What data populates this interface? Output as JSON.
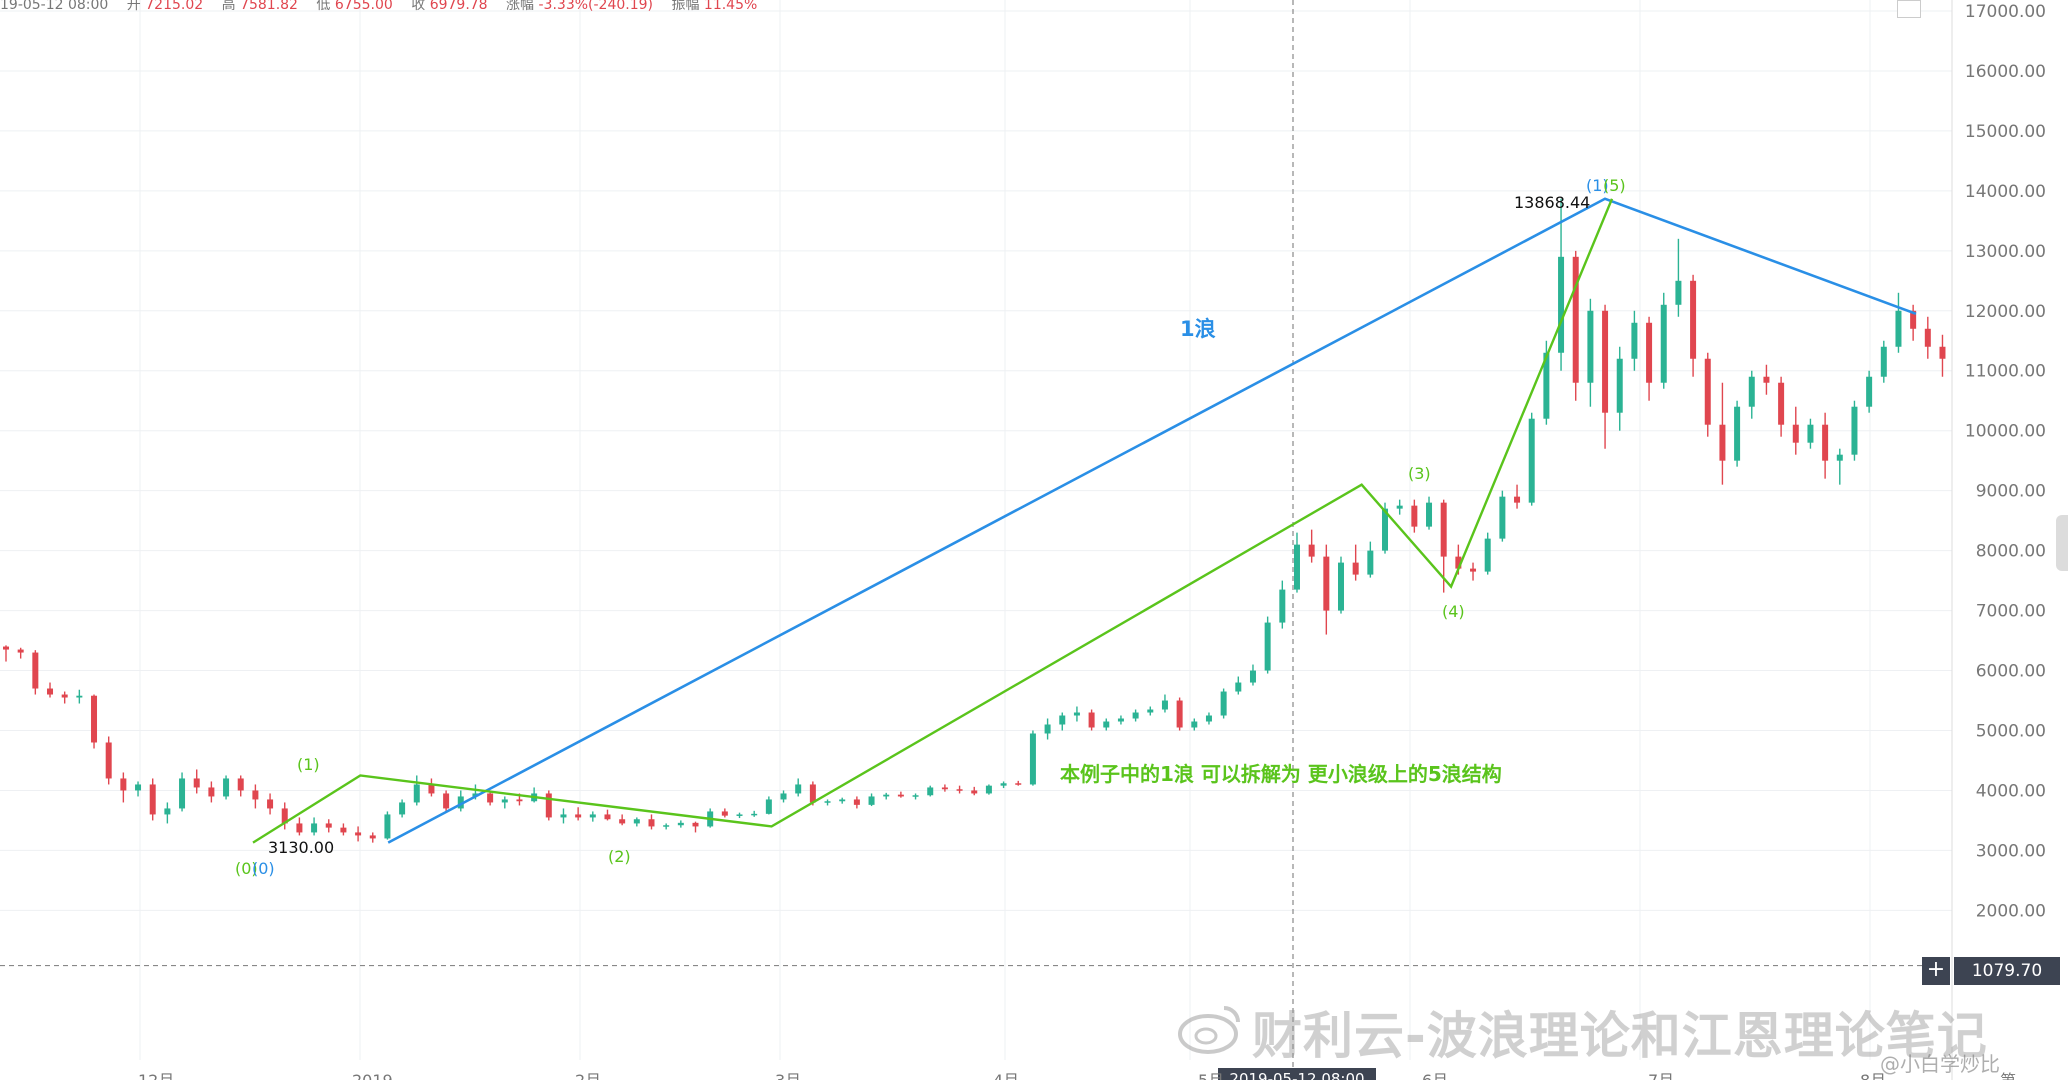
{
  "header": {
    "date_label": "19-05-12 08:00",
    "open_label": "开",
    "open": "7215.02",
    "high_label": "高",
    "high": "7581.82",
    "low_label": "低",
    "low": "6755.00",
    "close_label": "收",
    "close": "6979.78",
    "change_label": "涨幅",
    "change": "-3.33%(-240.19)",
    "amp_label": "振幅",
    "amp": "11.45%"
  },
  "price_tag": "1079.70",
  "crosshair_date": "2019-05-12 08:00",
  "watermark": "财利云-波浪理论和江恩理论笔记",
  "watermark_handle": "@小白学炒比",
  "colors": {
    "up": "#2bb394",
    "down": "#e0464f",
    "big_wave": "#2a8fe6",
    "small_wave": "#5ac41c",
    "grid": "#eef0f3",
    "axis_text": "#777777"
  },
  "chart_data": {
    "type": "candlestick",
    "y_axis": {
      "ticks": [
        "17000.00",
        "16000.00",
        "15000.00",
        "14000.00",
        "13000.00",
        "12000.00",
        "11000.00",
        "10000.00",
        "9000.00",
        "8000.00",
        "7000.00",
        "6000.00",
        "5000.00",
        "4000.00",
        "3000.00",
        "2000.00"
      ],
      "min": 1000,
      "max": 17500,
      "scale": "linear",
      "side": "right"
    },
    "x_axis": {
      "ticks": [
        "12月",
        "2019",
        "2月",
        "3月",
        "4月",
        "5月",
        "6月",
        "7月",
        "8月",
        "第"
      ]
    },
    "candles": [
      [
        6400,
        6420,
        6150,
        6350
      ],
      [
        6350,
        6380,
        6200,
        6300
      ],
      [
        6300,
        6340,
        5600,
        5700
      ],
      [
        5700,
        5800,
        5550,
        5600
      ],
      [
        5600,
        5650,
        5450,
        5550
      ],
      [
        5550,
        5680,
        5450,
        5580
      ],
      [
        5580,
        5600,
        4700,
        4800
      ],
      [
        4800,
        4900,
        4100,
        4200
      ],
      [
        4200,
        4300,
        3800,
        4000
      ],
      [
        4000,
        4150,
        3900,
        4100
      ],
      [
        4100,
        4200,
        3500,
        3600
      ],
      [
        3600,
        3800,
        3450,
        3700
      ],
      [
        3700,
        4300,
        3650,
        4200
      ],
      [
        4200,
        4350,
        3950,
        4050
      ],
      [
        4050,
        4150,
        3800,
        3900
      ],
      [
        3900,
        4250,
        3850,
        4200
      ],
      [
        4200,
        4250,
        3900,
        4000
      ],
      [
        4000,
        4100,
        3700,
        3850
      ],
      [
        3850,
        3950,
        3600,
        3700
      ],
      [
        3700,
        3800,
        3350,
        3450
      ],
      [
        3450,
        3550,
        3250,
        3300
      ],
      [
        3300,
        3550,
        3250,
        3450
      ],
      [
        3450,
        3520,
        3300,
        3380
      ],
      [
        3380,
        3450,
        3250,
        3300
      ],
      [
        3300,
        3400,
        3150,
        3250
      ],
      [
        3250,
        3300,
        3130,
        3200
      ],
      [
        3200,
        3650,
        3180,
        3600
      ],
      [
        3600,
        3850,
        3550,
        3800
      ],
      [
        3800,
        4250,
        3750,
        4100
      ],
      [
        4100,
        4200,
        3900,
        3950
      ],
      [
        3950,
        4000,
        3650,
        3700
      ],
      [
        3700,
        4000,
        3650,
        3900
      ],
      [
        3900,
        4100,
        3850,
        3950
      ],
      [
        3950,
        4000,
        3750,
        3800
      ],
      [
        3800,
        3900,
        3700,
        3850
      ],
      [
        3850,
        3950,
        3750,
        3820
      ],
      [
        3820,
        4050,
        3800,
        3950
      ],
      [
        3950,
        4000,
        3500,
        3550
      ],
      [
        3550,
        3700,
        3450,
        3600
      ],
      [
        3600,
        3720,
        3500,
        3550
      ],
      [
        3550,
        3650,
        3480,
        3600
      ],
      [
        3600,
        3680,
        3500,
        3520
      ],
      [
        3520,
        3600,
        3420,
        3450
      ],
      [
        3450,
        3550,
        3400,
        3520
      ],
      [
        3520,
        3600,
        3350,
        3400
      ],
      [
        3400,
        3450,
        3350,
        3420
      ],
      [
        3420,
        3500,
        3380,
        3460
      ],
      [
        3460,
        3480,
        3300,
        3400
      ],
      [
        3400,
        3700,
        3380,
        3650
      ],
      [
        3650,
        3700,
        3550,
        3580
      ],
      [
        3580,
        3630,
        3540,
        3600
      ],
      [
        3600,
        3660,
        3560,
        3610
      ],
      [
        3610,
        3900,
        3600,
        3850
      ],
      [
        3850,
        4000,
        3800,
        3950
      ],
      [
        3950,
        4200,
        3900,
        4100
      ],
      [
        4100,
        4150,
        3750,
        3800
      ],
      [
        3800,
        3850,
        3750,
        3820
      ],
      [
        3820,
        3880,
        3780,
        3850
      ],
      [
        3850,
        3900,
        3700,
        3760
      ],
      [
        3760,
        3950,
        3740,
        3900
      ],
      [
        3900,
        3960,
        3850,
        3930
      ],
      [
        3930,
        3980,
        3880,
        3900
      ],
      [
        3900,
        3950,
        3850,
        3920
      ],
      [
        3920,
        4080,
        3900,
        4050
      ],
      [
        4050,
        4100,
        3980,
        4020
      ],
      [
        4020,
        4080,
        3950,
        4000
      ],
      [
        4000,
        4060,
        3920,
        3950
      ],
      [
        3950,
        4100,
        3930,
        4080
      ],
      [
        4080,
        4150,
        4040,
        4120
      ],
      [
        4120,
        4160,
        4080,
        4100
      ],
      [
        4100,
        5000,
        4080,
        4950
      ],
      [
        4950,
        5200,
        4850,
        5100
      ],
      [
        5100,
        5300,
        5000,
        5250
      ],
      [
        5250,
        5400,
        5150,
        5300
      ],
      [
        5300,
        5350,
        5000,
        5050
      ],
      [
        5050,
        5200,
        5000,
        5150
      ],
      [
        5150,
        5250,
        5100,
        5200
      ],
      [
        5200,
        5350,
        5150,
        5300
      ],
      [
        5300,
        5400,
        5250,
        5350
      ],
      [
        5350,
        5600,
        5300,
        5500
      ],
      [
        5500,
        5550,
        5000,
        5050
      ],
      [
        5050,
        5200,
        5000,
        5150
      ],
      [
        5150,
        5300,
        5100,
        5250
      ],
      [
        5250,
        5700,
        5200,
        5650
      ],
      [
        5650,
        5900,
        5600,
        5800
      ],
      [
        5800,
        6100,
        5750,
        6000
      ],
      [
        6000,
        6900,
        5950,
        6800
      ],
      [
        6800,
        7500,
        6700,
        7350
      ],
      [
        7350,
        8300,
        7300,
        8100
      ],
      [
        8100,
        8350,
        7800,
        7900
      ],
      [
        7900,
        8100,
        6600,
        7000
      ],
      [
        7000,
        7900,
        6950,
        7800
      ],
      [
        7800,
        8100,
        7500,
        7600
      ],
      [
        7600,
        8150,
        7550,
        8000
      ],
      [
        8000,
        8800,
        7950,
        8700
      ],
      [
        8700,
        8850,
        8600,
        8750
      ],
      [
        8750,
        8850,
        8300,
        8400
      ],
      [
        8400,
        8900,
        8350,
        8800
      ],
      [
        8800,
        8850,
        7300,
        7900
      ],
      [
        7900,
        8100,
        7600,
        7700
      ],
      [
        7700,
        7800,
        7500,
        7650
      ],
      [
        7650,
        8300,
        7600,
        8200
      ],
      [
        8200,
        9000,
        8150,
        8900
      ],
      [
        8900,
        9100,
        8700,
        8800
      ],
      [
        8800,
        10300,
        8750,
        10200
      ],
      [
        10200,
        11500,
        10100,
        11300
      ],
      [
        11300,
        13868,
        11000,
        12900
      ],
      [
        12900,
        13000,
        10500,
        10800
      ],
      [
        10800,
        12200,
        10400,
        12000
      ],
      [
        12000,
        12100,
        9700,
        10300
      ],
      [
        10300,
        11400,
        10000,
        11200
      ],
      [
        11200,
        12000,
        11000,
        11800
      ],
      [
        11800,
        11900,
        10500,
        10800
      ],
      [
        10800,
        12300,
        10700,
        12100
      ],
      [
        12100,
        13200,
        11900,
        12500
      ],
      [
        12500,
        12600,
        10900,
        11200
      ],
      [
        11200,
        11300,
        9900,
        10100
      ],
      [
        10100,
        10800,
        9100,
        9500
      ],
      [
        9500,
        10500,
        9400,
        10400
      ],
      [
        10400,
        11000,
        10200,
        10900
      ],
      [
        10900,
        11100,
        10600,
        10800
      ],
      [
        10800,
        10900,
        9900,
        10100
      ],
      [
        10100,
        10400,
        9600,
        9800
      ],
      [
        9800,
        10200,
        9700,
        10100
      ],
      [
        10100,
        10300,
        9200,
        9500
      ],
      [
        9500,
        9700,
        9100,
        9600
      ],
      [
        9600,
        10500,
        9500,
        10400
      ],
      [
        10400,
        11000,
        10300,
        10900
      ],
      [
        10900,
        11500,
        10800,
        11400
      ],
      [
        11400,
        12300,
        11300,
        12000
      ],
      [
        12000,
        12100,
        11500,
        11700
      ],
      [
        11700,
        11900,
        11200,
        11400
      ],
      [
        11400,
        11600,
        10900,
        11200
      ]
    ],
    "series": [
      {
        "name": "1浪",
        "kind": "trendline",
        "points": [
          [
            0.1,
            3130
          ],
          [
            1.0,
            13868.44
          ],
          [
            1.23,
            11950
          ]
        ]
      },
      {
        "name": "",
        "kind": "wave",
        "points": [
          [
            0.0,
            3130
          ],
          [
            0.06,
            4250
          ],
          [
            0.29,
            3400
          ],
          [
            0.62,
            9100
          ],
          [
            0.67,
            7400
          ],
          [
            0.76,
            13868
          ]
        ]
      }
    ],
    "annotations": {
      "big_wave_label": "1浪",
      "note": "本例子中的1浪 可以拆解为 更小浪级上的5浪结构",
      "low_value": "3130.00",
      "high_value": "13868.44",
      "wave_labels": [
        "(1)",
        "(2)",
        "(3)",
        "(4)",
        "(0)",
        "(0)",
        "(1)",
        "(5)"
      ]
    },
    "grid": true
  }
}
